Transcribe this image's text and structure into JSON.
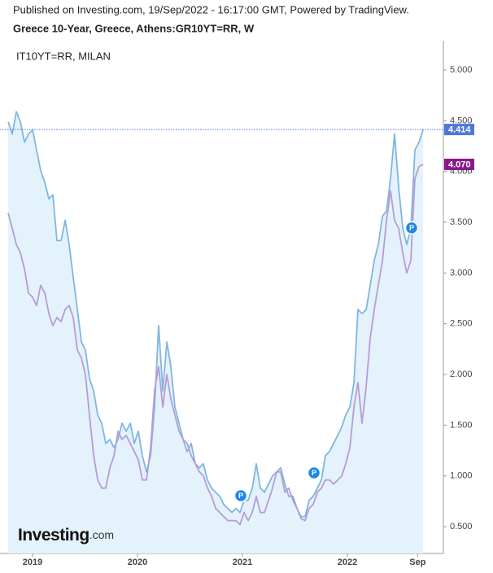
{
  "header": "Published on Investing.com, 19/Sep/2022 - 16:17:00 GMT, Powered by TradingView.",
  "logo": {
    "brand": "Investing",
    "suffix": ".com"
  },
  "chart_data": {
    "type": "line",
    "title": "Greece 10-Year, Greece, Athens:GR10YT=RR, W",
    "legend_text": "IT10YT=RR, MILAN",
    "xlim": [
      2018.69,
      2022.915
    ],
    "xticks": [
      2019,
      2020,
      2021,
      2022,
      {
        "value": 2022.67,
        "label": "Sep"
      }
    ],
    "ylim": [
      0.236,
      5.289
    ],
    "yticks": [
      {
        "value": 0.5,
        "label": "0.500"
      },
      {
        "value": 1,
        "label": "1.000"
      },
      {
        "value": 1.5,
        "label": "1.500"
      },
      {
        "value": 2,
        "label": "2.000"
      },
      {
        "value": 2.5,
        "label": "2.500"
      },
      {
        "value": 3,
        "label": "3.000"
      },
      {
        "value": 3.5,
        "label": "3.500"
      },
      {
        "value": 4,
        "label": "4.000"
      },
      {
        "value": 4.5,
        "label": "4.500"
      },
      {
        "value": 5,
        "label": "5.000"
      }
    ],
    "x": [
      2018.768,
      2018.807,
      2018.846,
      2018.884,
      2018.923,
      2018.962,
      2019.001,
      2019.039,
      2019.078,
      2019.117,
      2019.156,
      2019.194,
      2019.233,
      2019.272,
      2019.311,
      2019.349,
      2019.388,
      2019.427,
      2019.466,
      2019.504,
      2019.543,
      2019.582,
      2019.621,
      2019.659,
      2019.698,
      2019.737,
      2019.776,
      2019.815,
      2019.853,
      2019.892,
      2019.931,
      2019.97,
      2020.008,
      2020.047,
      2020.086,
      2020.125,
      2020.163,
      2020.202,
      2020.241,
      2020.28,
      2020.318,
      2020.357,
      2020.396,
      2020.435,
      2020.473,
      2020.512,
      2020.551,
      2020.59,
      2020.628,
      2020.667,
      2020.706,
      2020.745,
      2020.784,
      2020.822,
      2020.861,
      2020.9,
      2020.939,
      2020.977,
      2021.016,
      2021.055,
      2021.094,
      2021.132,
      2021.171,
      2021.21,
      2021.249,
      2021.287,
      2021.326,
      2021.365,
      2021.404,
      2021.442,
      2021.481,
      2021.52,
      2021.559,
      2021.597,
      2021.636,
      2021.675,
      2021.714,
      2021.753,
      2021.791,
      2021.83,
      2021.869,
      2021.908,
      2021.946,
      2021.985,
      2022.024,
      2022.063,
      2022.101,
      2022.14,
      2022.179,
      2022.218,
      2022.256,
      2022.295,
      2022.334,
      2022.373,
      2022.411,
      2022.45,
      2022.489,
      2022.528,
      2022.566,
      2022.605,
      2022.644,
      2022.683,
      2022.722
    ],
    "series": [
      {
        "color": "#80b6e2",
        "fill": "#e4f2fb",
        "tag_color": "#4d78d9",
        "last_label": "4.414",
        "values": [
          4.49,
          4.37,
          4.59,
          4.49,
          4.29,
          4.37,
          4.41,
          4.21,
          4.01,
          3.89,
          3.73,
          3.77,
          3.32,
          3.32,
          3.52,
          3.28,
          2.96,
          2.64,
          2.32,
          2.24,
          1.96,
          1.84,
          1.6,
          1.52,
          1.32,
          1.36,
          1.28,
          1.36,
          1.52,
          1.44,
          1.52,
          1.32,
          1.44,
          1.2,
          1.04,
          1.2,
          1.68,
          2.48,
          1.84,
          2.32,
          2.08,
          1.68,
          1.52,
          1.36,
          1.24,
          1.32,
          1.12,
          1.08,
          1.12,
          0.96,
          0.88,
          0.84,
          0.8,
          0.72,
          0.68,
          0.64,
          0.68,
          0.64,
          0.76,
          0.76,
          0.88,
          1.12,
          0.88,
          0.84,
          0.92,
          1.0,
          1.04,
          1.08,
          0.92,
          0.8,
          0.8,
          0.68,
          0.6,
          0.6,
          0.76,
          0.8,
          0.88,
          0.96,
          1.2,
          1.24,
          1.32,
          1.4,
          1.48,
          1.6,
          1.68,
          1.92,
          2.64,
          2.6,
          2.64,
          2.88,
          3.12,
          3.28,
          3.56,
          3.61,
          3.93,
          4.37,
          3.85,
          3.44,
          3.28,
          3.44,
          4.21,
          4.29,
          4.414
        ]
      },
      {
        "name": "IT10YT=RR, MILAN",
        "color": "#b89bd7",
        "tag_color": "#8a1a8c",
        "last_label": "4.070",
        "values": [
          3.59,
          3.44,
          3.28,
          3.2,
          3.04,
          2.8,
          2.76,
          2.68,
          2.88,
          2.8,
          2.6,
          2.48,
          2.56,
          2.52,
          2.64,
          2.68,
          2.56,
          2.24,
          2.16,
          2.0,
          1.6,
          1.2,
          0.96,
          0.88,
          0.88,
          1.08,
          1.2,
          1.44,
          1.36,
          1.4,
          1.32,
          1.24,
          1.16,
          0.96,
          0.96,
          1.28,
          1.84,
          2.08,
          1.68,
          2.0,
          1.76,
          1.6,
          1.44,
          1.36,
          1.32,
          1.2,
          1.12,
          1.04,
          1.0,
          0.88,
          0.8,
          0.68,
          0.64,
          0.6,
          0.56,
          0.56,
          0.56,
          0.52,
          0.64,
          0.56,
          0.64,
          0.8,
          0.64,
          0.64,
          0.76,
          0.88,
          1.04,
          1.04,
          0.84,
          0.88,
          0.76,
          0.68,
          0.58,
          0.56,
          0.68,
          0.72,
          0.84,
          0.88,
          0.96,
          0.96,
          0.92,
          0.96,
          1.0,
          1.12,
          1.28,
          1.68,
          1.92,
          1.52,
          1.88,
          2.36,
          2.64,
          2.88,
          3.12,
          3.52,
          3.81,
          3.52,
          3.44,
          3.2,
          3.0,
          3.12,
          3.93,
          4.05,
          4.07
        ]
      }
    ]
  }
}
